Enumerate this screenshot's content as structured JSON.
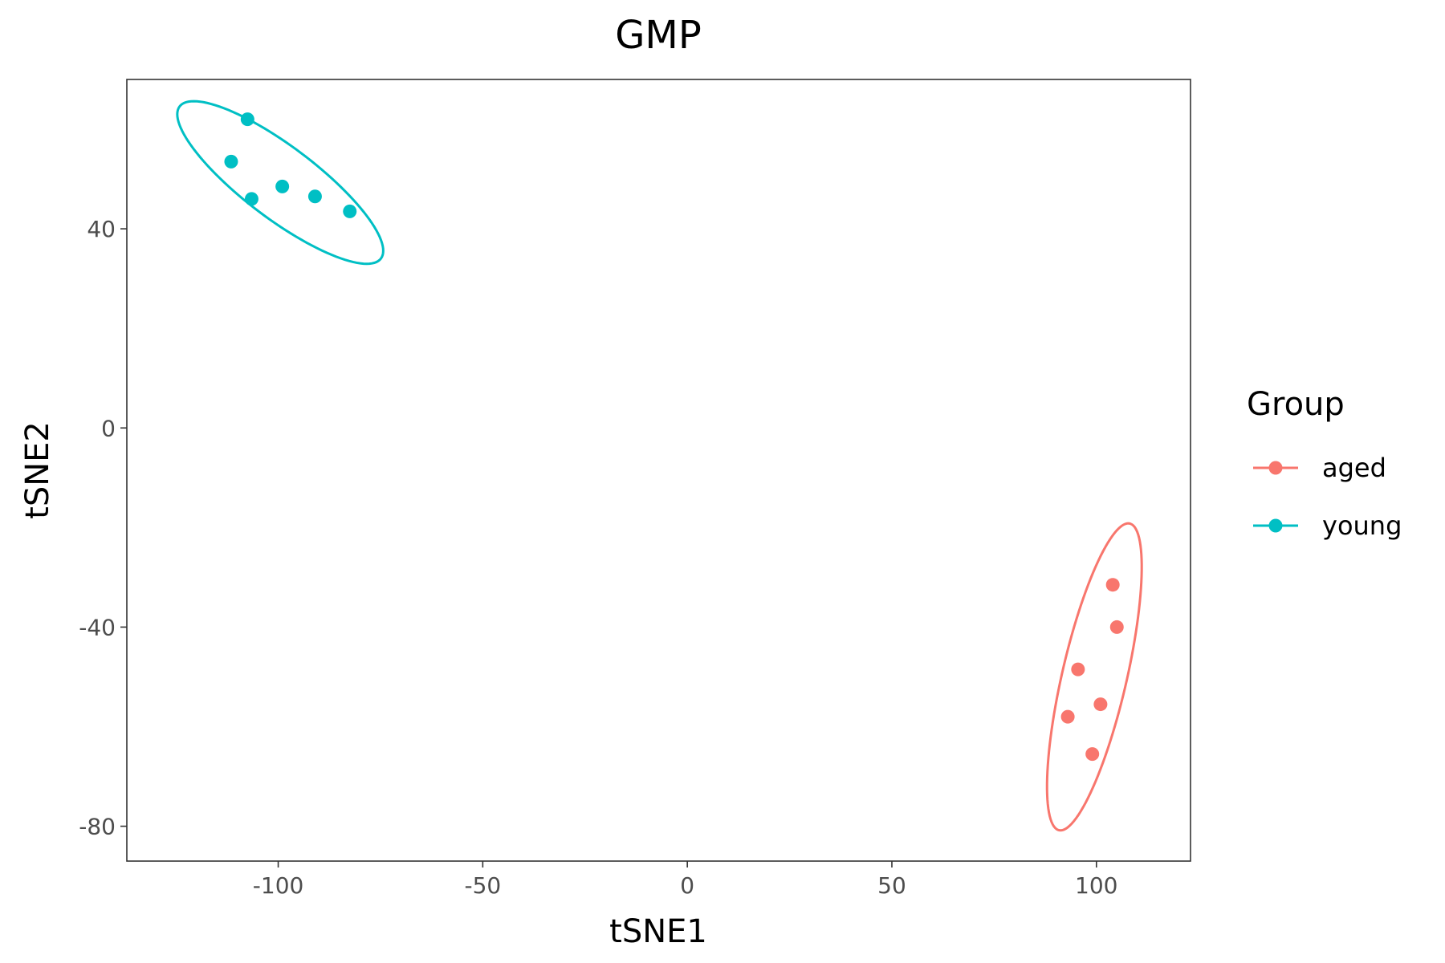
{
  "chart_data": {
    "type": "scatter",
    "title": "GMP",
    "xlabel": "tSNE1",
    "ylabel": "tSNE2",
    "xlim": [
      -137,
      123
    ],
    "ylim": [
      -87,
      70
    ],
    "x_ticks": [
      -100,
      -50,
      0,
      50,
      100
    ],
    "y_ticks": [
      40,
      0,
      -40,
      -80
    ],
    "grid": false,
    "legend": {
      "title": "Group",
      "position": "right"
    },
    "series": [
      {
        "name": "aged",
        "color": "#F8766D",
        "points": [
          [
            104,
            -31.5
          ],
          [
            105,
            -40
          ],
          [
            95.5,
            -48.5
          ],
          [
            101,
            -55.5
          ],
          [
            93,
            -58
          ],
          [
            99,
            -65.5
          ]
        ],
        "ellipse": {
          "center": [
            99.5,
            -50
          ],
          "semi_major": 32,
          "semi_minor": 7.8,
          "rotation_deg": 74
        }
      },
      {
        "name": "young",
        "color": "#00BFC4",
        "points": [
          [
            -107.5,
            62
          ],
          [
            -111.5,
            53.5
          ],
          [
            -106.5,
            46
          ],
          [
            -99,
            48.5
          ],
          [
            -91,
            46.5
          ],
          [
            -82.5,
            43.5
          ]
        ],
        "ellipse": {
          "center": [
            -99.5,
            49.3
          ],
          "semi_major": 29,
          "semi_minor": 7.7,
          "rotation_deg": -31
        }
      }
    ]
  }
}
